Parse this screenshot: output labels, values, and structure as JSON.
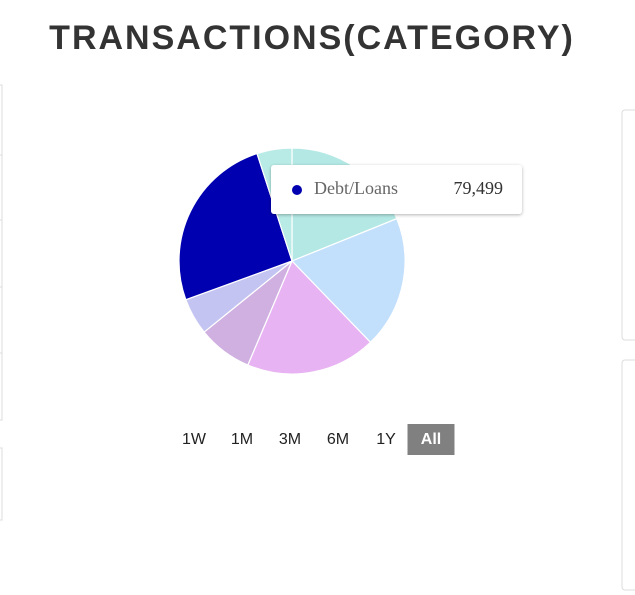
{
  "chart_data": {
    "type": "pie",
    "title": "TRANSACTIONS(CATEGORY)",
    "categories": [
      null,
      null,
      null,
      null,
      null,
      "Debt/Loans",
      null
    ],
    "values": [
      58800,
      58800,
      57900,
      24200,
      16400,
      79499,
      15600
    ],
    "value_labels": [
      null,
      null,
      null,
      null,
      null,
      "79,499",
      null
    ],
    "colors": [
      "#b3e8e5",
      "#c2dffc",
      "#e8b3f2",
      "#cfb0e0",
      "#c4c4f2",
      "#0000b0",
      "#b8ebe6"
    ],
    "tooltip_index": 5,
    "range_buttons": [
      "1W",
      "1M",
      "3M",
      "6M",
      "1Y",
      "All"
    ],
    "active_range": 5
  }
}
